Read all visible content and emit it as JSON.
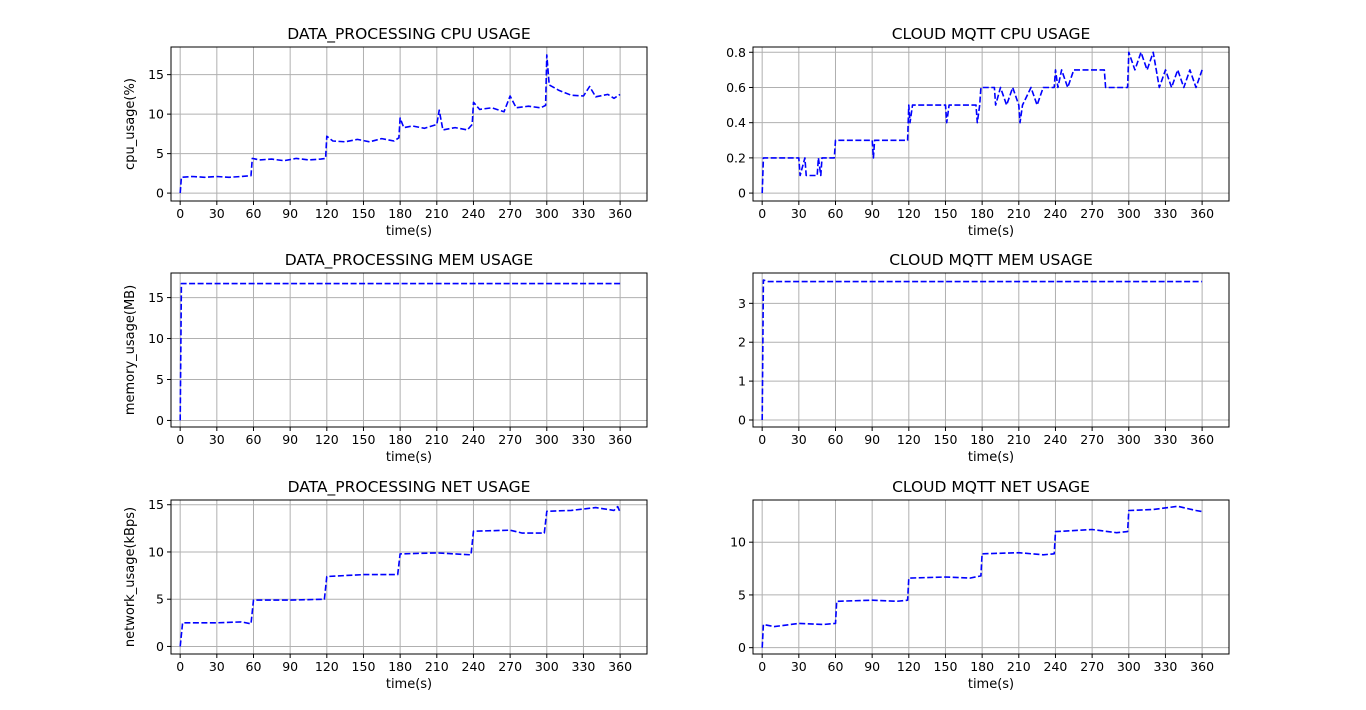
{
  "figure": {
    "background": "#ffffff",
    "line_color": "#0000ff",
    "grid_color": "#b0b0b0"
  },
  "chart_data": [
    {
      "type": "line",
      "title": "DATA_PROCESSING CPU USAGE",
      "xlabel": "time(s)",
      "ylabel": "cpu_usage(%)",
      "xlim": [
        -7.5,
        382
      ],
      "ylim": [
        -1,
        18.5
      ],
      "xticks": [
        0,
        30,
        60,
        90,
        120,
        150,
        180,
        210,
        240,
        270,
        300,
        330,
        360
      ],
      "yticks": [
        0,
        5,
        10,
        15
      ],
      "grid": true,
      "line_style": "dashed",
      "series": [
        {
          "values": [
            [
              0,
              0
            ],
            [
              1,
              2.0
            ],
            [
              10,
              2.1
            ],
            [
              20,
              2.0
            ],
            [
              30,
              2.1
            ],
            [
              40,
              2.0
            ],
            [
              50,
              2.1
            ],
            [
              58,
              2.2
            ],
            [
              59,
              4.4
            ],
            [
              65,
              4.2
            ],
            [
              75,
              4.3
            ],
            [
              85,
              4.1
            ],
            [
              95,
              4.4
            ],
            [
              105,
              4.2
            ],
            [
              115,
              4.3
            ],
            [
              119,
              4.4
            ],
            [
              120,
              7.2
            ],
            [
              125,
              6.6
            ],
            [
              135,
              6.5
            ],
            [
              145,
              6.8
            ],
            [
              155,
              6.5
            ],
            [
              165,
              6.9
            ],
            [
              175,
              6.6
            ],
            [
              179,
              7.0
            ],
            [
              180,
              9.5
            ],
            [
              183,
              8.3
            ],
            [
              190,
              8.5
            ],
            [
              200,
              8.2
            ],
            [
              210,
              8.7
            ],
            [
              212,
              10.5
            ],
            [
              215,
              8.0
            ],
            [
              225,
              8.3
            ],
            [
              235,
              8.0
            ],
            [
              239,
              8.7
            ],
            [
              240,
              11.5
            ],
            [
              245,
              10.6
            ],
            [
              255,
              10.8
            ],
            [
              265,
              10.3
            ],
            [
              270,
              12.3
            ],
            [
              275,
              10.8
            ],
            [
              285,
              11.0
            ],
            [
              295,
              10.8
            ],
            [
              299,
              11.1
            ],
            [
              300,
              17.5
            ],
            [
              302,
              13.7
            ],
            [
              310,
              13.0
            ],
            [
              320,
              12.4
            ],
            [
              330,
              12.3
            ],
            [
              335,
              13.5
            ],
            [
              340,
              12.2
            ],
            [
              350,
              12.5
            ],
            [
              355,
              12.0
            ],
            [
              360,
              12.5
            ]
          ]
        }
      ]
    },
    {
      "type": "line",
      "title": "CLOUD MQTT CPU USAGE",
      "xlabel": "time(s)",
      "ylabel": "",
      "xlim": [
        -7.5,
        382
      ],
      "ylim": [
        -0.045,
        0.83
      ],
      "xticks": [
        0,
        30,
        60,
        90,
        120,
        150,
        180,
        210,
        240,
        270,
        300,
        330,
        360
      ],
      "yticks": [
        0.0,
        0.2,
        0.4,
        0.6,
        0.8
      ],
      "grid": true,
      "line_style": "dashed",
      "series": [
        {
          "values": [
            [
              0,
              0
            ],
            [
              1,
              0.2
            ],
            [
              30,
              0.2
            ],
            [
              31,
              0.1
            ],
            [
              35,
              0.2
            ],
            [
              36,
              0.1
            ],
            [
              45,
              0.1
            ],
            [
              46,
              0.2
            ],
            [
              48,
              0.1
            ],
            [
              49,
              0.2
            ],
            [
              59,
              0.2
            ],
            [
              60,
              0.3
            ],
            [
              90,
              0.3
            ],
            [
              91,
              0.2
            ],
            [
              92,
              0.3
            ],
            [
              119,
              0.3
            ],
            [
              120,
              0.5
            ],
            [
              121,
              0.4
            ],
            [
              123,
              0.5
            ],
            [
              150,
              0.5
            ],
            [
              151,
              0.4
            ],
            [
              153,
              0.5
            ],
            [
              175,
              0.5
            ],
            [
              176,
              0.4
            ],
            [
              178,
              0.5
            ],
            [
              179,
              0.6
            ],
            [
              190,
              0.6
            ],
            [
              191,
              0.5
            ],
            [
              195,
              0.6
            ],
            [
              200,
              0.5
            ],
            [
              205,
              0.6
            ],
            [
              210,
              0.5
            ],
            [
              211,
              0.4
            ],
            [
              213,
              0.5
            ],
            [
              220,
              0.6
            ],
            [
              225,
              0.5
            ],
            [
              230,
              0.6
            ],
            [
              239,
              0.6
            ],
            [
              240,
              0.7
            ],
            [
              242,
              0.6
            ],
            [
              245,
              0.7
            ],
            [
              250,
              0.6
            ],
            [
              255,
              0.7
            ],
            [
              280,
              0.7
            ],
            [
              281,
              0.6
            ],
            [
              299,
              0.6
            ],
            [
              300,
              0.8
            ],
            [
              305,
              0.7
            ],
            [
              310,
              0.8
            ],
            [
              315,
              0.7
            ],
            [
              320,
              0.8
            ],
            [
              325,
              0.6
            ],
            [
              330,
              0.7
            ],
            [
              335,
              0.6
            ],
            [
              340,
              0.7
            ],
            [
              345,
              0.6
            ],
            [
              350,
              0.7
            ],
            [
              355,
              0.6
            ],
            [
              360,
              0.7
            ]
          ]
        }
      ]
    },
    {
      "type": "line",
      "title": "DATA_PROCESSING MEM USAGE",
      "xlabel": "time(s)",
      "ylabel": "memory_usage(MB)",
      "xlim": [
        -7.5,
        382
      ],
      "ylim": [
        -0.8,
        18.0
      ],
      "xticks": [
        0,
        30,
        60,
        90,
        120,
        150,
        180,
        210,
        240,
        270,
        300,
        330,
        360
      ],
      "yticks": [
        0,
        5,
        10,
        15
      ],
      "grid": true,
      "line_style": "dashed",
      "series": [
        {
          "values": [
            [
              0,
              0
            ],
            [
              1,
              16.7
            ],
            [
              360,
              16.7
            ]
          ]
        }
      ]
    },
    {
      "type": "line",
      "title": "CLOUD MQTT MEM USAGE",
      "xlabel": "time(s)",
      "ylabel": "",
      "xlim": [
        -7.5,
        382
      ],
      "ylim": [
        -0.18,
        3.78
      ],
      "xticks": [
        0,
        30,
        60,
        90,
        120,
        150,
        180,
        210,
        240,
        270,
        300,
        330,
        360
      ],
      "yticks": [
        0,
        1,
        2,
        3
      ],
      "grid": true,
      "line_style": "dashed",
      "series": [
        {
          "values": [
            [
              0,
              0
            ],
            [
              1,
              3.6
            ],
            [
              5,
              3.56
            ],
            [
              360,
              3.56
            ]
          ]
        }
      ]
    },
    {
      "type": "line",
      "title": "DATA_PROCESSING NET USAGE",
      "xlabel": "time(s)",
      "ylabel": "network_usage(kBps)",
      "xlim": [
        -7.5,
        382
      ],
      "ylim": [
        -0.8,
        15.5
      ],
      "xticks": [
        0,
        30,
        60,
        90,
        120,
        150,
        180,
        210,
        240,
        270,
        300,
        330,
        360
      ],
      "yticks": [
        0,
        5,
        10,
        15
      ],
      "grid": true,
      "line_style": "dashed",
      "series": [
        {
          "values": [
            [
              0,
              0
            ],
            [
              2,
              2.5
            ],
            [
              30,
              2.5
            ],
            [
              50,
              2.6
            ],
            [
              58,
              2.4
            ],
            [
              60,
              4.9
            ],
            [
              90,
              4.9
            ],
            [
              118,
              5.0
            ],
            [
              120,
              7.4
            ],
            [
              150,
              7.6
            ],
            [
              178,
              7.6
            ],
            [
              180,
              9.8
            ],
            [
              210,
              9.9
            ],
            [
              238,
              9.7
            ],
            [
              240,
              12.2
            ],
            [
              270,
              12.3
            ],
            [
              280,
              12.0
            ],
            [
              298,
              12.0
            ],
            [
              300,
              14.3
            ],
            [
              320,
              14.4
            ],
            [
              340,
              14.7
            ],
            [
              355,
              14.4
            ],
            [
              358,
              14.8
            ],
            [
              360,
              14.2
            ]
          ]
        }
      ]
    },
    {
      "type": "line",
      "title": "CLOUD MQTT NET USAGE",
      "xlabel": "time(s)",
      "ylabel": "",
      "xlim": [
        -7.5,
        382
      ],
      "ylim": [
        -0.6,
        14.0
      ],
      "xticks": [
        0,
        30,
        60,
        90,
        120,
        150,
        180,
        210,
        240,
        270,
        300,
        330,
        360
      ],
      "yticks": [
        0,
        5,
        10
      ],
      "grid": true,
      "line_style": "dashed",
      "series": [
        {
          "values": [
            [
              0,
              0
            ],
            [
              1,
              2.2
            ],
            [
              10,
              2.0
            ],
            [
              30,
              2.3
            ],
            [
              50,
              2.2
            ],
            [
              60,
              2.3
            ],
            [
              61,
              4.4
            ],
            [
              90,
              4.5
            ],
            [
              110,
              4.4
            ],
            [
              119,
              4.5
            ],
            [
              120,
              6.6
            ],
            [
              150,
              6.7
            ],
            [
              170,
              6.6
            ],
            [
              179,
              6.8
            ],
            [
              180,
              8.9
            ],
            [
              210,
              9.0
            ],
            [
              230,
              8.8
            ],
            [
              239,
              8.9
            ],
            [
              240,
              11.0
            ],
            [
              270,
              11.2
            ],
            [
              290,
              10.9
            ],
            [
              299,
              11.0
            ],
            [
              300,
              13.0
            ],
            [
              320,
              13.1
            ],
            [
              340,
              13.4
            ],
            [
              355,
              13.0
            ],
            [
              360,
              12.9
            ]
          ]
        }
      ]
    }
  ]
}
